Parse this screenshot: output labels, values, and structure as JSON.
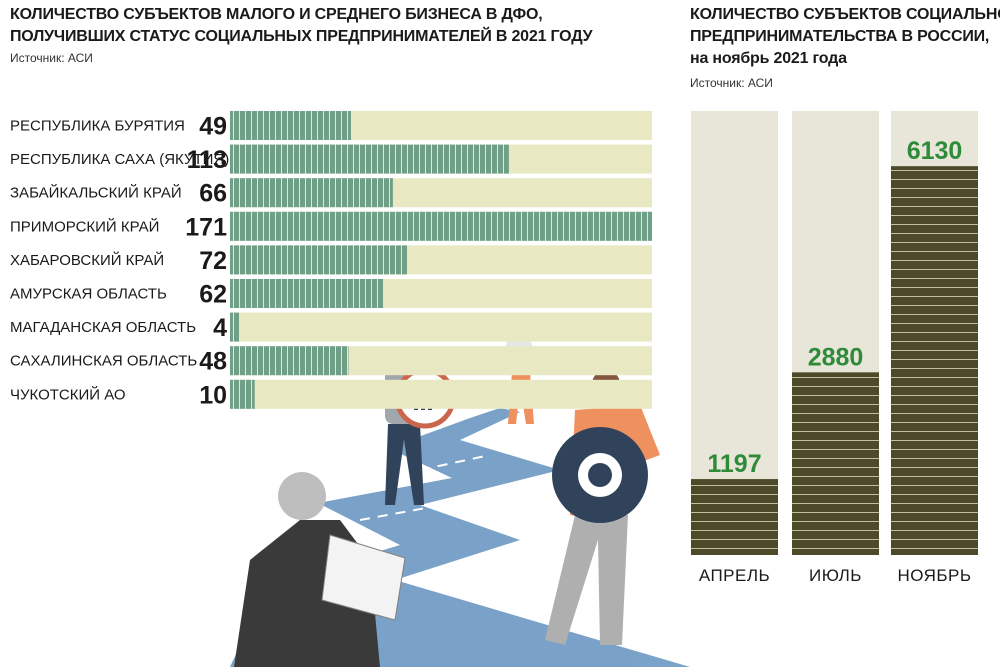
{
  "left": {
    "title_lines": [
      "Количество субъектов малого и среднего бизнеса в ДФО,",
      "получивших статус социальных предпринимателей в 2021 году"
    ],
    "source": "Источник: АСИ"
  },
  "right": {
    "title_lines": [
      "Количество субъектов социального",
      "предпринимательства в России,",
      "на ноябрь 2021 года"
    ],
    "source": "Источник: АСИ"
  },
  "colors": {
    "bar_fill": "#6f9f86",
    "bar_track": "#e8e8c3",
    "column_fill": "#4c4a28",
    "column_track": "#e7e6d8",
    "column_value": "#2f8a3a",
    "road": "#6f9bc4"
  },
  "chart_data": [
    {
      "type": "bar",
      "orientation": "horizontal",
      "categories": [
        "Республика Бурятия",
        "Республика Саха (Якутия)",
        "Забайкальский край",
        "Приморский край",
        "Хабаровский край",
        "Амурская область",
        "Магаданская область",
        "Сахалинская область",
        "Чукотский АО"
      ],
      "values": [
        49,
        113,
        66,
        171,
        72,
        62,
        4,
        48,
        10
      ],
      "xlim": [
        0,
        171
      ],
      "grid": false
    },
    {
      "type": "bar",
      "orientation": "vertical",
      "categories": [
        "Апрель",
        "Июль",
        "Ноябрь"
      ],
      "values": [
        1197,
        2880,
        6130
      ],
      "ylim": [
        0,
        7000
      ],
      "grid": false
    }
  ]
}
